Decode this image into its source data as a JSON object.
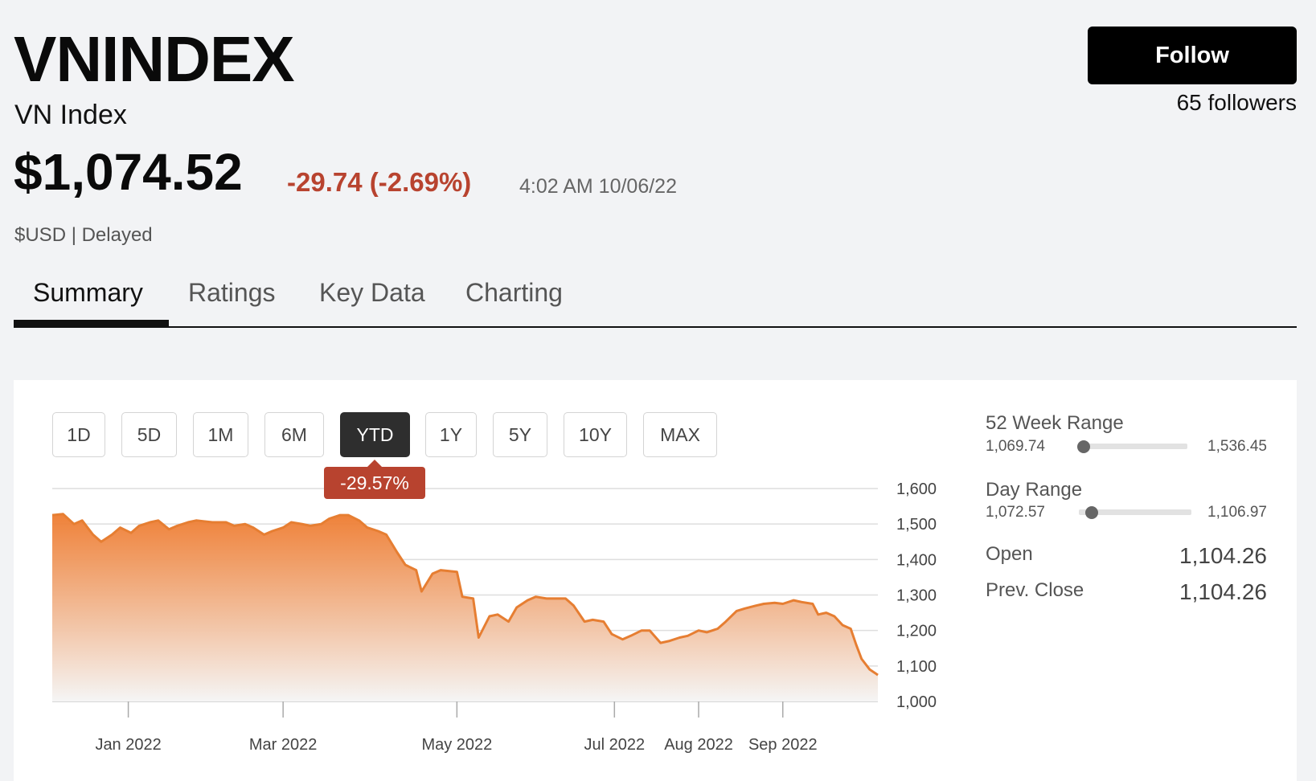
{
  "header": {
    "ticker": "VNINDEX",
    "name": "VN Index",
    "price": "$1,074.52",
    "change": "-29.74 (-2.69%)",
    "timestamp": "4:02 AM 10/06/22",
    "currency_note": "$USD | Delayed",
    "follow_label": "Follow",
    "followers": "65 followers"
  },
  "tabs": [
    {
      "label": "Summary",
      "active": true
    },
    {
      "label": "Ratings",
      "active": false
    },
    {
      "label": "Key Data",
      "active": false
    },
    {
      "label": "Charting",
      "active": false
    }
  ],
  "ranges": [
    {
      "label": "1D",
      "active": false
    },
    {
      "label": "5D",
      "active": false
    },
    {
      "label": "1M",
      "active": false
    },
    {
      "label": "6M",
      "active": false
    },
    {
      "label": "YTD",
      "active": true
    },
    {
      "label": "1Y",
      "active": false
    },
    {
      "label": "5Y",
      "active": false
    },
    {
      "label": "10Y",
      "active": false
    },
    {
      "label": "MAX",
      "active": false
    }
  ],
  "range_change": "-29.57%",
  "stats": {
    "week52": {
      "title": "52 Week Range",
      "low": "1,069.74",
      "high": "1,536.45",
      "position": 0.0
    },
    "day": {
      "title": "Day Range",
      "low": "1,072.57",
      "high": "1,106.97",
      "position": 0.08
    },
    "open": {
      "label": "Open",
      "value": "1,104.26"
    },
    "prev_close": {
      "label": "Prev. Close",
      "value": "1,104.26"
    }
  },
  "colors": {
    "line": "#e67e32",
    "negative": "#b8432f",
    "fill_top": "#ee7b2f",
    "fill_bottom": "#f5f5f5"
  },
  "chart_data": {
    "type": "area",
    "y_ticks": [
      "1,600",
      "1,500",
      "1,400",
      "1,300",
      "1,200",
      "1,100",
      "1,000"
    ],
    "ylim": [
      1000,
      1600
    ],
    "x_ticks": [
      {
        "label": "Jan 2022",
        "date": "2022-01-03"
      },
      {
        "label": "Mar 2022",
        "date": "2022-03-01"
      },
      {
        "label": "May 2022",
        "date": "2022-05-04"
      },
      {
        "label": "Jul 2022",
        "date": "2022-07-01"
      },
      {
        "label": "Aug 2022",
        "date": "2022-08-01"
      },
      {
        "label": "Sep 2022",
        "date": "2022-09-01"
      }
    ],
    "grid": true,
    "points": [
      [
        "2021-12-06",
        1525
      ],
      [
        "2021-12-10",
        1528
      ],
      [
        "2021-12-14",
        1500
      ],
      [
        "2021-12-17",
        1510
      ],
      [
        "2021-12-21",
        1470
      ],
      [
        "2021-12-24",
        1450
      ],
      [
        "2021-12-28",
        1470
      ],
      [
        "2021-12-31",
        1490
      ],
      [
        "2022-01-04",
        1475
      ],
      [
        "2022-01-07",
        1495
      ],
      [
        "2022-01-11",
        1505
      ],
      [
        "2022-01-14",
        1510
      ],
      [
        "2022-01-18",
        1485
      ],
      [
        "2022-01-21",
        1495
      ],
      [
        "2022-01-25",
        1505
      ],
      [
        "2022-01-28",
        1510
      ],
      [
        "2022-02-03",
        1505
      ],
      [
        "2022-02-08",
        1505
      ],
      [
        "2022-02-11",
        1495
      ],
      [
        "2022-02-15",
        1500
      ],
      [
        "2022-02-18",
        1490
      ],
      [
        "2022-02-22",
        1470
      ],
      [
        "2022-02-25",
        1480
      ],
      [
        "2022-03-01",
        1490
      ],
      [
        "2022-03-04",
        1505
      ],
      [
        "2022-03-08",
        1500
      ],
      [
        "2022-03-11",
        1495
      ],
      [
        "2022-03-15",
        1500
      ],
      [
        "2022-03-18",
        1515
      ],
      [
        "2022-03-22",
        1525
      ],
      [
        "2022-03-25",
        1525
      ],
      [
        "2022-03-29",
        1510
      ],
      [
        "2022-04-01",
        1490
      ],
      [
        "2022-04-05",
        1480
      ],
      [
        "2022-04-08",
        1470
      ],
      [
        "2022-04-12",
        1420
      ],
      [
        "2022-04-15",
        1385
      ],
      [
        "2022-04-19",
        1370
      ],
      [
        "2022-04-21",
        1310
      ],
      [
        "2022-04-25",
        1360
      ],
      [
        "2022-04-28",
        1370
      ],
      [
        "2022-05-04",
        1365
      ],
      [
        "2022-05-06",
        1295
      ],
      [
        "2022-05-10",
        1290
      ],
      [
        "2022-05-12",
        1180
      ],
      [
        "2022-05-16",
        1240
      ],
      [
        "2022-05-19",
        1245
      ],
      [
        "2022-05-23",
        1225
      ],
      [
        "2022-05-26",
        1265
      ],
      [
        "2022-05-30",
        1285
      ],
      [
        "2022-06-02",
        1295
      ],
      [
        "2022-06-06",
        1290
      ],
      [
        "2022-06-09",
        1290
      ],
      [
        "2022-06-13",
        1290
      ],
      [
        "2022-06-16",
        1270
      ],
      [
        "2022-06-20",
        1225
      ],
      [
        "2022-06-23",
        1230
      ],
      [
        "2022-06-27",
        1225
      ],
      [
        "2022-06-30",
        1190
      ],
      [
        "2022-07-04",
        1175
      ],
      [
        "2022-07-07",
        1185
      ],
      [
        "2022-07-11",
        1200
      ],
      [
        "2022-07-14",
        1200
      ],
      [
        "2022-07-18",
        1165
      ],
      [
        "2022-07-21",
        1170
      ],
      [
        "2022-07-25",
        1180
      ],
      [
        "2022-07-28",
        1185
      ],
      [
        "2022-08-01",
        1200
      ],
      [
        "2022-08-04",
        1195
      ],
      [
        "2022-08-08",
        1205
      ],
      [
        "2022-08-11",
        1225
      ],
      [
        "2022-08-15",
        1255
      ],
      [
        "2022-08-18",
        1262
      ],
      [
        "2022-08-22",
        1270
      ],
      [
        "2022-08-25",
        1275
      ],
      [
        "2022-08-29",
        1278
      ],
      [
        "2022-09-01",
        1275
      ],
      [
        "2022-09-05",
        1285
      ],
      [
        "2022-09-08",
        1280
      ],
      [
        "2022-09-12",
        1275
      ],
      [
        "2022-09-14",
        1245
      ],
      [
        "2022-09-17",
        1250
      ],
      [
        "2022-09-20",
        1240
      ],
      [
        "2022-09-23",
        1215
      ],
      [
        "2022-09-26",
        1205
      ],
      [
        "2022-09-28",
        1160
      ],
      [
        "2022-09-30",
        1120
      ],
      [
        "2022-10-03",
        1090
      ],
      [
        "2022-10-05",
        1080
      ],
      [
        "2022-10-06",
        1074.52
      ]
    ]
  }
}
